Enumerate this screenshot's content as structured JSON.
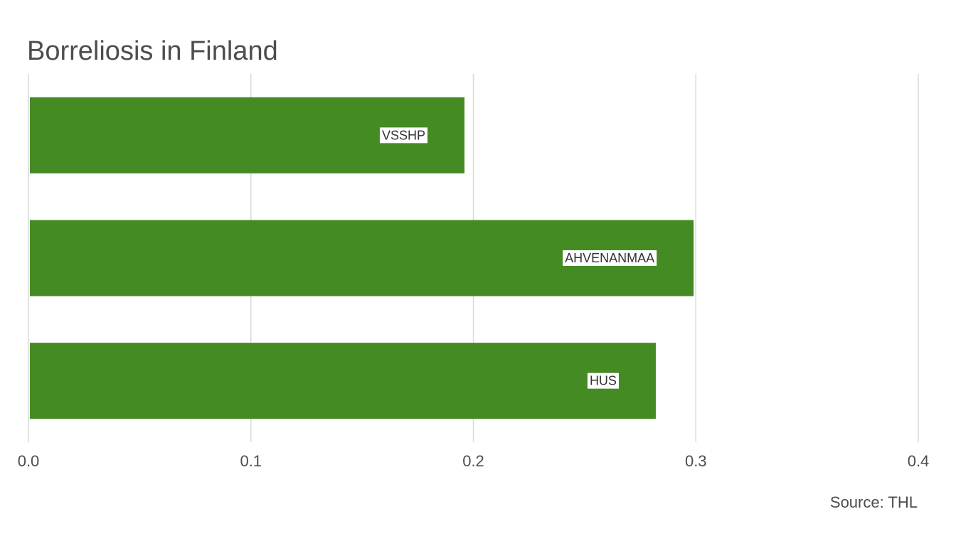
{
  "chart_data": {
    "type": "bar",
    "orientation": "horizontal",
    "title": "Borreliosis in Finland",
    "caption": "Source: THL",
    "categories": [
      "VSSHP",
      "AHVENANMAA",
      "HUS"
    ],
    "values": [
      0.196,
      0.299,
      0.282
    ],
    "xlim": [
      0,
      0.4
    ],
    "xticks": [
      0,
      0.1,
      0.2,
      0.3,
      0.4
    ],
    "xtick_labels": [
      "0.0",
      "0.1",
      "0.2",
      "0.3",
      "0.4"
    ],
    "xlabel": "",
    "ylabel": "",
    "grid": "vertical",
    "legend": "none",
    "bar_color": "#458b24"
  }
}
